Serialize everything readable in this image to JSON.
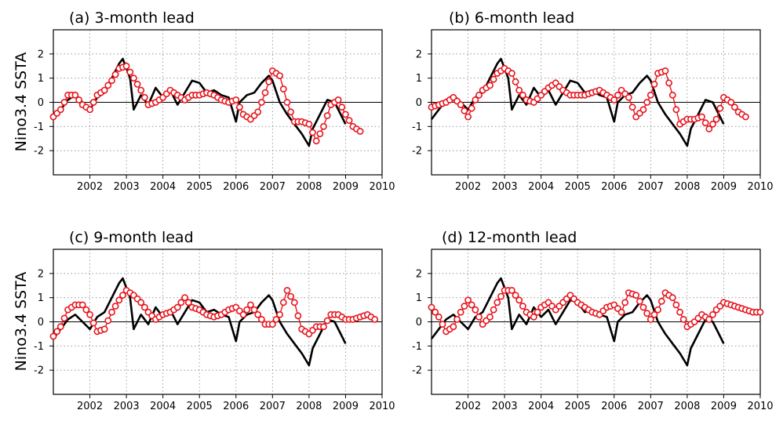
{
  "figure": {
    "ylabel": "Nino3.4  SSTA",
    "marker_color": "#e8141c",
    "obs_color": "#000000"
  },
  "chart_data": [
    {
      "type": "line",
      "title": "(a) 3-month lead",
      "xlim": [
        2001.0,
        2010.0
      ],
      "ylim": [
        -3,
        3
      ],
      "xticks": [
        "2002",
        "2003",
        "2004",
        "2005",
        "2006",
        "2007",
        "2008",
        "2009",
        "2010"
      ],
      "yticks": [
        "-2",
        "-1",
        "0",
        "1",
        "2"
      ],
      "grid": true,
      "series": [
        {
          "role": "observed",
          "style": "black-line",
          "x": [
            2001.0,
            2001.2,
            2001.4,
            2001.6,
            2001.8,
            2002.0,
            2002.2,
            2002.4,
            2002.6,
            2002.8,
            2002.9,
            2003.1,
            2003.2,
            2003.4,
            2003.6,
            2003.8,
            2004.0,
            2004.2,
            2004.4,
            2004.6,
            2004.8,
            2005.0,
            2005.2,
            2005.4,
            2005.6,
            2005.8,
            2006.0,
            2006.1,
            2006.3,
            2006.5,
            2006.7,
            2006.9,
            2007.0,
            2007.2,
            2007.4,
            2007.6,
            2007.8,
            2008.0,
            2008.1,
            2008.3,
            2008.5,
            2008.7,
            2008.9,
            2009.0
          ],
          "y": [
            -0.7,
            -0.3,
            0.1,
            0.3,
            0.0,
            -0.3,
            0.2,
            0.4,
            1.0,
            1.6,
            1.8,
            1.0,
            -0.3,
            0.3,
            -0.1,
            0.6,
            0.2,
            0.5,
            -0.1,
            0.4,
            0.9,
            0.8,
            0.4,
            0.5,
            0.3,
            0.2,
            -0.8,
            0.0,
            0.3,
            0.4,
            0.8,
            1.1,
            0.9,
            0.0,
            -0.5,
            -0.9,
            -1.3,
            -1.8,
            -1.1,
            -0.5,
            0.1,
            0.0,
            -0.6,
            -0.9
          ]
        },
        {
          "role": "forecast",
          "style": "red-circles",
          "x": [
            2001.0,
            2001.2,
            2001.4,
            2001.6,
            2001.8,
            2002.0,
            2002.2,
            2002.4,
            2002.6,
            2002.8,
            2003.0,
            2003.2,
            2003.4,
            2003.6,
            2003.8,
            2004.0,
            2004.2,
            2004.4,
            2004.6,
            2004.8,
            2005.0,
            2005.2,
            2005.4,
            2005.6,
            2005.8,
            2006.0,
            2006.2,
            2006.4,
            2006.6,
            2006.8,
            2007.0,
            2007.2,
            2007.4,
            2007.6,
            2007.8,
            2008.0,
            2008.2,
            2008.4,
            2008.6,
            2008.8,
            2009.0,
            2009.2,
            2009.4
          ],
          "y": [
            -0.6,
            -0.3,
            0.3,
            0.3,
            -0.1,
            -0.3,
            0.3,
            0.5,
            0.9,
            1.4,
            1.5,
            1.0,
            0.5,
            -0.1,
            0.0,
            0.2,
            0.5,
            0.3,
            0.1,
            0.3,
            0.3,
            0.4,
            0.3,
            0.1,
            0.0,
            0.1,
            -0.5,
            -0.7,
            -0.4,
            0.4,
            1.3,
            1.1,
            0.0,
            -0.8,
            -0.8,
            -0.9,
            -1.6,
            -1.0,
            -0.1,
            0.1,
            -0.5,
            -1.0,
            -1.2
          ]
        }
      ]
    },
    {
      "type": "line",
      "title": "(b) 6-month lead",
      "xlim": [
        2001.0,
        2010.0
      ],
      "ylim": [
        -3,
        3
      ],
      "xticks": [
        "2002",
        "2003",
        "2004",
        "2005",
        "2006",
        "2007",
        "2008",
        "2009",
        "2010"
      ],
      "yticks": [
        "-2",
        "-1",
        "0",
        "1",
        "2"
      ],
      "grid": true,
      "series": [
        {
          "role": "observed",
          "style": "black-line",
          "x": [
            2001.0,
            2001.2,
            2001.4,
            2001.6,
            2001.8,
            2002.0,
            2002.2,
            2002.4,
            2002.6,
            2002.8,
            2002.9,
            2003.1,
            2003.2,
            2003.4,
            2003.6,
            2003.8,
            2004.0,
            2004.2,
            2004.4,
            2004.6,
            2004.8,
            2005.0,
            2005.2,
            2005.4,
            2005.6,
            2005.8,
            2006.0,
            2006.1,
            2006.3,
            2006.5,
            2006.7,
            2006.9,
            2007.0,
            2007.2,
            2007.4,
            2007.6,
            2007.8,
            2008.0,
            2008.1,
            2008.3,
            2008.5,
            2008.7,
            2008.9,
            2009.0
          ],
          "y": [
            -0.7,
            -0.3,
            0.1,
            0.3,
            0.0,
            -0.3,
            0.2,
            0.4,
            1.0,
            1.6,
            1.8,
            1.0,
            -0.3,
            0.3,
            -0.1,
            0.6,
            0.2,
            0.5,
            -0.1,
            0.4,
            0.9,
            0.8,
            0.4,
            0.5,
            0.3,
            0.2,
            -0.8,
            0.0,
            0.3,
            0.4,
            0.8,
            1.1,
            0.9,
            0.0,
            -0.5,
            -0.9,
            -1.3,
            -1.8,
            -1.1,
            -0.5,
            0.1,
            0.0,
            -0.6,
            -0.9
          ]
        },
        {
          "role": "forecast",
          "style": "red-circles",
          "x": [
            2001.0,
            2001.2,
            2001.4,
            2001.6,
            2001.8,
            2002.0,
            2002.2,
            2002.4,
            2002.6,
            2002.8,
            2003.0,
            2003.2,
            2003.4,
            2003.6,
            2003.8,
            2004.0,
            2004.2,
            2004.4,
            2004.6,
            2004.8,
            2005.0,
            2005.2,
            2005.4,
            2005.6,
            2005.8,
            2006.0,
            2006.2,
            2006.4,
            2006.6,
            2006.8,
            2007.0,
            2007.2,
            2007.4,
            2007.6,
            2007.8,
            2008.0,
            2008.2,
            2008.4,
            2008.6,
            2008.8,
            2009.0,
            2009.2,
            2009.4,
            2009.6
          ],
          "y": [
            -0.2,
            -0.1,
            0.0,
            0.2,
            -0.1,
            -0.6,
            0.1,
            0.5,
            0.7,
            1.2,
            1.4,
            1.2,
            0.5,
            0.1,
            0.0,
            0.3,
            0.6,
            0.8,
            0.5,
            0.3,
            0.3,
            0.3,
            0.4,
            0.5,
            0.3,
            0.1,
            0.5,
            0.2,
            -0.6,
            -0.3,
            0.3,
            1.2,
            1.3,
            0.3,
            -0.9,
            -0.7,
            -0.7,
            -0.6,
            -1.1,
            -0.7,
            0.2,
            0.0,
            -0.4,
            -0.6
          ]
        }
      ]
    },
    {
      "type": "line",
      "title": "(c) 9-month lead",
      "xlim": [
        2001.0,
        2010.0
      ],
      "ylim": [
        -3,
        3
      ],
      "xticks": [
        "2002",
        "2003",
        "2004",
        "2005",
        "2006",
        "2007",
        "2008",
        "2009",
        "2010"
      ],
      "yticks": [
        "-2",
        "-1",
        "0",
        "1",
        "2"
      ],
      "grid": true,
      "series": [
        {
          "role": "observed",
          "style": "black-line",
          "x": [
            2001.0,
            2001.2,
            2001.4,
            2001.6,
            2001.8,
            2002.0,
            2002.2,
            2002.4,
            2002.6,
            2002.8,
            2002.9,
            2003.1,
            2003.2,
            2003.4,
            2003.6,
            2003.8,
            2004.0,
            2004.2,
            2004.4,
            2004.6,
            2004.8,
            2005.0,
            2005.2,
            2005.4,
            2005.6,
            2005.8,
            2006.0,
            2006.1,
            2006.3,
            2006.5,
            2006.7,
            2006.9,
            2007.0,
            2007.2,
            2007.4,
            2007.6,
            2007.8,
            2008.0,
            2008.1,
            2008.3,
            2008.5,
            2008.7,
            2008.9,
            2009.0
          ],
          "y": [
            -0.7,
            -0.3,
            0.1,
            0.3,
            0.0,
            -0.3,
            0.2,
            0.4,
            1.0,
            1.6,
            1.8,
            1.0,
            -0.3,
            0.3,
            -0.1,
            0.6,
            0.2,
            0.5,
            -0.1,
            0.4,
            0.9,
            0.8,
            0.4,
            0.5,
            0.3,
            0.2,
            -0.8,
            0.0,
            0.3,
            0.4,
            0.8,
            1.1,
            0.9,
            0.0,
            -0.5,
            -0.9,
            -1.3,
            -1.8,
            -1.1,
            -0.5,
            0.1,
            0.0,
            -0.6,
            -0.9
          ]
        },
        {
          "role": "forecast",
          "style": "red-circles",
          "x": [
            2001.0,
            2001.2,
            2001.4,
            2001.6,
            2001.8,
            2002.0,
            2002.2,
            2002.4,
            2002.6,
            2002.8,
            2003.0,
            2003.2,
            2003.4,
            2003.6,
            2003.8,
            2004.0,
            2004.2,
            2004.4,
            2004.6,
            2004.8,
            2005.0,
            2005.2,
            2005.4,
            2005.6,
            2005.8,
            2006.0,
            2006.2,
            2006.4,
            2006.6,
            2006.8,
            2007.0,
            2007.2,
            2007.4,
            2007.6,
            2007.8,
            2008.0,
            2008.2,
            2008.4,
            2008.6,
            2008.8,
            2009.0,
            2009.2,
            2009.4,
            2009.6,
            2009.8
          ],
          "y": [
            -0.6,
            -0.2,
            0.5,
            0.7,
            0.7,
            0.3,
            -0.4,
            -0.3,
            0.4,
            0.9,
            1.3,
            1.1,
            0.8,
            0.4,
            0.1,
            0.3,
            0.4,
            0.6,
            1.0,
            0.6,
            0.5,
            0.3,
            0.2,
            0.3,
            0.5,
            0.6,
            0.3,
            0.7,
            0.3,
            -0.1,
            -0.1,
            0.3,
            1.3,
            0.8,
            -0.3,
            -0.5,
            -0.2,
            -0.2,
            0.3,
            0.3,
            0.1,
            0.1,
            0.2,
            0.3,
            0.1
          ]
        }
      ]
    },
    {
      "type": "line",
      "title": "(d) 12-month lead",
      "xlim": [
        2001.0,
        2010.0
      ],
      "ylim": [
        -3,
        3
      ],
      "xticks": [
        "2002",
        "2003",
        "2004",
        "2005",
        "2006",
        "2007",
        "2008",
        "2009",
        "2010"
      ],
      "yticks": [
        "-2",
        "-1",
        "0",
        "1",
        "2"
      ],
      "grid": true,
      "series": [
        {
          "role": "observed",
          "style": "black-line",
          "x": [
            2001.0,
            2001.2,
            2001.4,
            2001.6,
            2001.8,
            2002.0,
            2002.2,
            2002.4,
            2002.6,
            2002.8,
            2002.9,
            2003.1,
            2003.2,
            2003.4,
            2003.6,
            2003.8,
            2004.0,
            2004.2,
            2004.4,
            2004.6,
            2004.8,
            2005.0,
            2005.2,
            2005.4,
            2005.6,
            2005.8,
            2006.0,
            2006.1,
            2006.3,
            2006.5,
            2006.7,
            2006.9,
            2007.0,
            2007.2,
            2007.4,
            2007.6,
            2007.8,
            2008.0,
            2008.1,
            2008.3,
            2008.5,
            2008.7,
            2008.9,
            2009.0
          ],
          "y": [
            -0.7,
            -0.3,
            0.1,
            0.3,
            0.0,
            -0.3,
            0.2,
            0.4,
            1.0,
            1.6,
            1.8,
            1.0,
            -0.3,
            0.3,
            -0.1,
            0.6,
            0.2,
            0.5,
            -0.1,
            0.4,
            0.9,
            0.8,
            0.4,
            0.5,
            0.3,
            0.2,
            -0.8,
            0.0,
            0.3,
            0.4,
            0.8,
            1.1,
            0.9,
            0.0,
            -0.5,
            -0.9,
            -1.3,
            -1.8,
            -1.1,
            -0.5,
            0.1,
            0.0,
            -0.6,
            -0.9
          ]
        },
        {
          "role": "forecast",
          "style": "red-circles",
          "x": [
            2001.0,
            2001.2,
            2001.4,
            2001.6,
            2001.8,
            2002.0,
            2002.2,
            2002.4,
            2002.6,
            2002.8,
            2003.0,
            2003.2,
            2003.4,
            2003.6,
            2003.8,
            2004.0,
            2004.2,
            2004.4,
            2004.6,
            2004.8,
            2005.0,
            2005.2,
            2005.4,
            2005.6,
            2005.8,
            2006.0,
            2006.2,
            2006.4,
            2006.6,
            2006.8,
            2007.0,
            2007.2,
            2007.4,
            2007.6,
            2007.8,
            2008.0,
            2008.2,
            2008.4,
            2008.6,
            2008.8,
            2009.0,
            2009.2,
            2009.4,
            2009.6,
            2009.8,
            2010.0
          ],
          "y": [
            0.6,
            0.2,
            -0.4,
            -0.2,
            0.4,
            0.9,
            0.5,
            -0.1,
            0.2,
            0.8,
            1.3,
            1.3,
            0.9,
            0.4,
            0.2,
            0.6,
            0.8,
            0.5,
            0.8,
            1.1,
            0.8,
            0.6,
            0.4,
            0.3,
            0.6,
            0.7,
            0.4,
            1.2,
            1.1,
            0.6,
            0.1,
            0.5,
            1.2,
            1.0,
            0.4,
            -0.2,
            0.0,
            0.3,
            0.1,
            0.5,
            0.8,
            0.7,
            0.6,
            0.5,
            0.4,
            0.4
          ]
        }
      ]
    }
  ]
}
